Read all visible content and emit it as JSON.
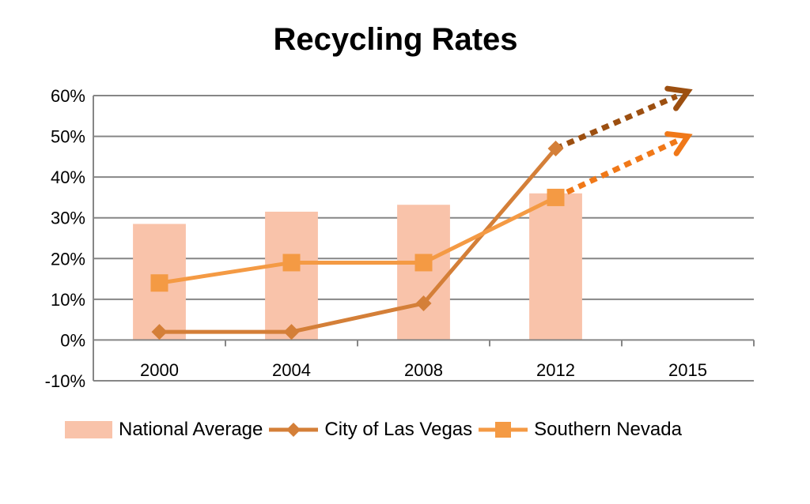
{
  "chart_data": {
    "type": "bar",
    "title": "Recycling Rates",
    "categories": [
      "2000",
      "2004",
      "2008",
      "2012",
      "2015"
    ],
    "ylim": [
      -10,
      60
    ],
    "yticks": [
      -10,
      0,
      10,
      20,
      30,
      40,
      50,
      60
    ],
    "ytick_labels": [
      "-10%",
      "0%",
      "10%",
      "20%",
      "30%",
      "40%",
      "50%",
      "60%"
    ],
    "grid": true,
    "legend_position": "bottom",
    "series": [
      {
        "name": "National Average",
        "kind": "bar",
        "color": "#f9c3aa",
        "values": [
          28.5,
          31.5,
          33.2,
          36.0,
          null
        ]
      },
      {
        "name": "City of Las Vegas",
        "kind": "line",
        "marker": "diamond",
        "color": "#d47f38",
        "values": [
          2,
          2,
          9,
          47,
          null
        ],
        "projection": {
          "from": "2012",
          "to": "2015",
          "from_value": 47,
          "to_value": 61,
          "color": "#9c4f10"
        }
      },
      {
        "name": "Southern Nevada",
        "kind": "line",
        "marker": "square",
        "color": "#f49a44",
        "values": [
          14,
          19,
          19,
          35,
          null
        ],
        "projection": {
          "from": "2012",
          "to": "2015",
          "from_value": 35,
          "to_value": 50,
          "color": "#f07818"
        }
      }
    ]
  }
}
